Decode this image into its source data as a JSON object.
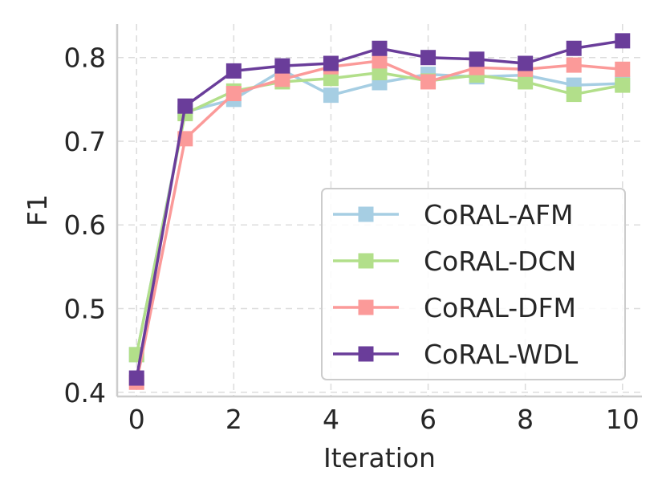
{
  "chart_data": {
    "type": "line",
    "title": "",
    "xlabel": "Iteration",
    "ylabel": "F1",
    "xlim": [
      -0.4,
      10.4
    ],
    "ylim": [
      0.395,
      0.84
    ],
    "xticks": [
      0,
      2,
      4,
      6,
      8,
      10
    ],
    "yticks": [
      0.4,
      0.5,
      0.6,
      0.7,
      0.8
    ],
    "xtick_labels": [
      "0",
      "2",
      "4",
      "6",
      "8",
      "10"
    ],
    "ytick_labels": [
      "0.4",
      "0.5",
      "0.6",
      "0.7",
      "0.8"
    ],
    "grid": true,
    "legend_position": "lower-right",
    "x": [
      0,
      1,
      2,
      3,
      4,
      5,
      6,
      7,
      8,
      9,
      10
    ],
    "series": [
      {
        "name": "CoRAL-AFM",
        "color": "#a6cee3",
        "marker": "square",
        "values": [
          0.445,
          0.735,
          0.75,
          0.785,
          0.755,
          0.77,
          0.78,
          0.777,
          0.779,
          0.767,
          0.769
        ]
      },
      {
        "name": "CoRAL-DCN",
        "color": "#b2df8a",
        "marker": "square",
        "values": [
          0.445,
          0.733,
          0.76,
          0.771,
          0.775,
          0.782,
          0.772,
          0.779,
          0.771,
          0.756,
          0.767
        ]
      },
      {
        "name": "CoRAL-DFM",
        "color": "#fb9a99",
        "marker": "square",
        "values": [
          0.412,
          0.703,
          0.757,
          0.774,
          0.789,
          0.796,
          0.771,
          0.788,
          0.786,
          0.791,
          0.786
        ]
      },
      {
        "name": "CoRAL-WDL",
        "color": "#6a3d9a",
        "marker": "square",
        "values": [
          0.417,
          0.742,
          0.784,
          0.79,
          0.793,
          0.811,
          0.8,
          0.798,
          0.793,
          0.811,
          0.82
        ]
      }
    ]
  }
}
